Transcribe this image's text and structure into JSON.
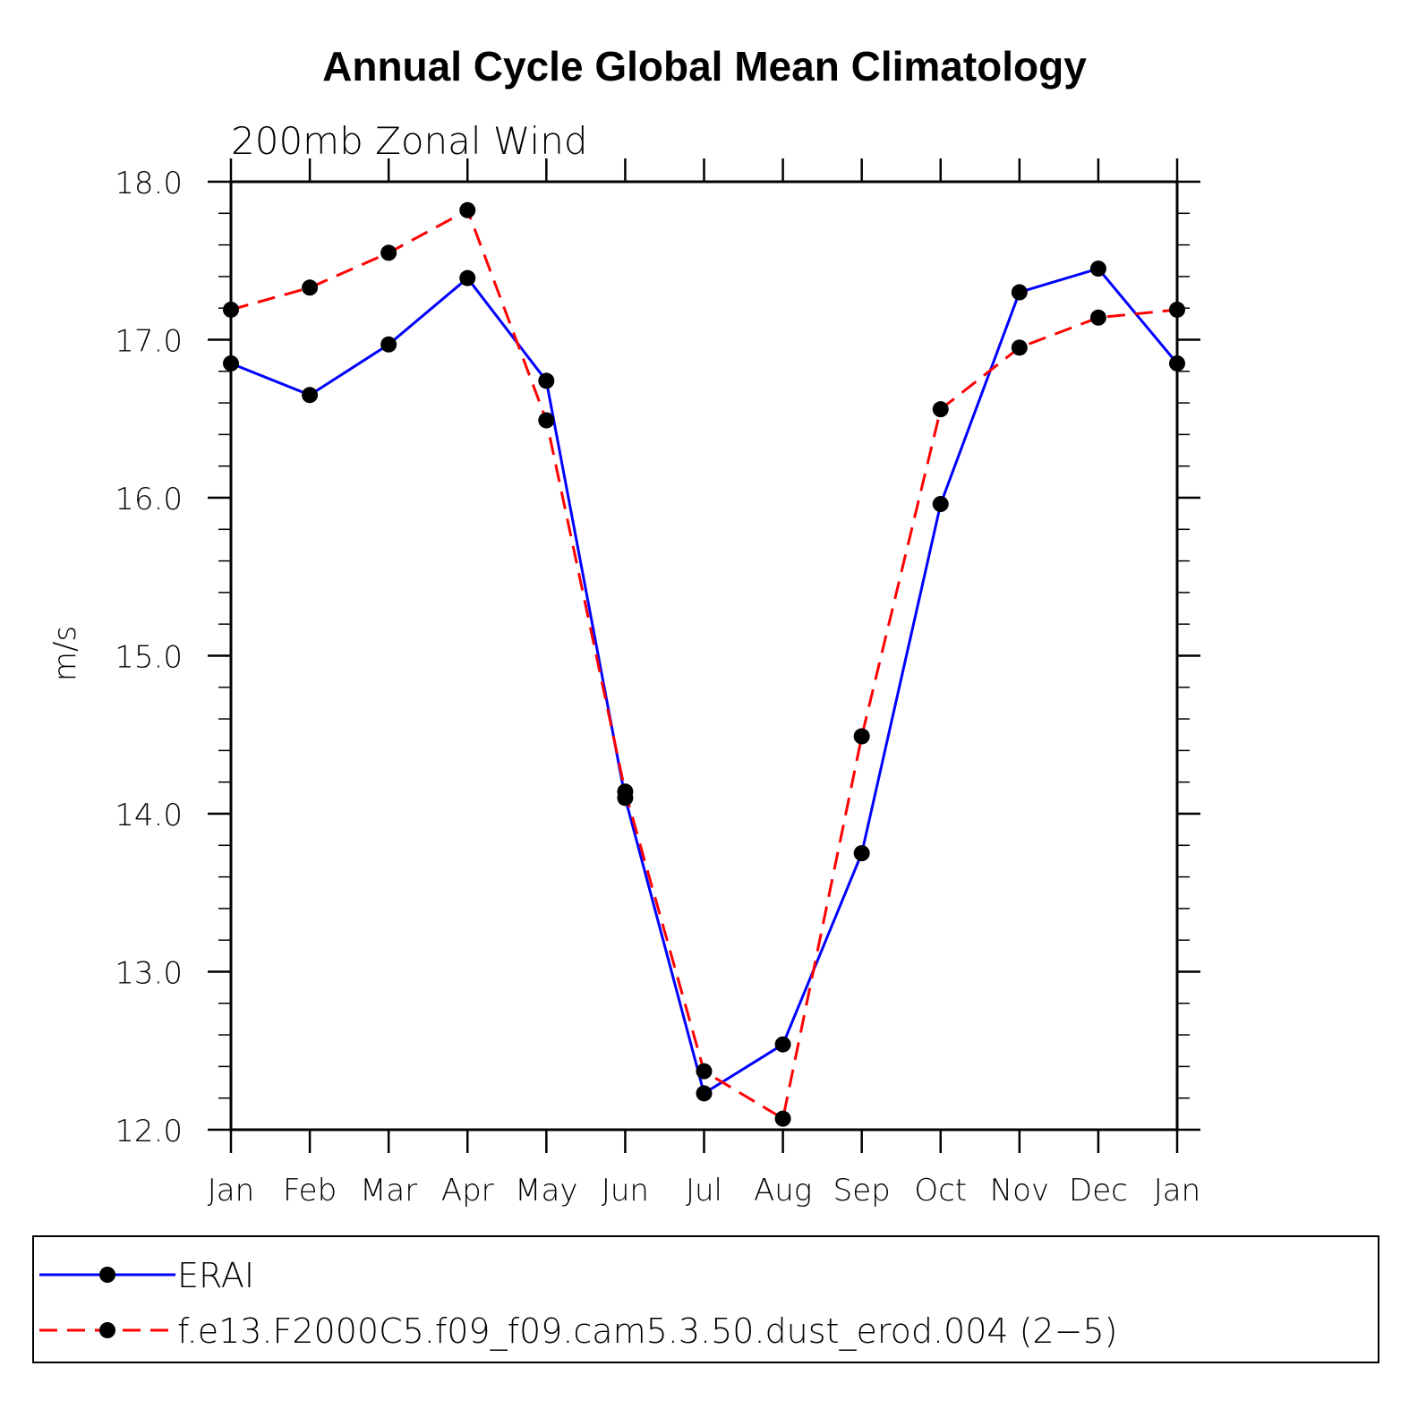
{
  "chart_data": {
    "type": "line",
    "title": "Annual Cycle Global Mean Climatology",
    "subtitle": "200mb Zonal Wind",
    "xlabel": "",
    "ylabel": "m/s",
    "ylim": [
      12.0,
      18.0
    ],
    "yticks": [
      "12.0",
      "13.0",
      "14.0",
      "15.0",
      "16.0",
      "17.0",
      "18.0"
    ],
    "categories": [
      "Jan",
      "Feb",
      "Mar",
      "Apr",
      "May",
      "Jun",
      "Jul",
      "Aug",
      "Sep",
      "Oct",
      "Nov",
      "Dec",
      "Jan"
    ],
    "series": [
      {
        "name": "ERAI",
        "color": "#0000ff",
        "dash": "solid",
        "values": [
          16.85,
          16.65,
          16.97,
          17.39,
          16.74,
          14.1,
          12.23,
          12.54,
          13.75,
          15.96,
          17.3,
          17.45,
          16.85
        ]
      },
      {
        "name": "f.e13.F2000C5.f09_f09.cam5.3.50.dust_erod.004 (2−5)",
        "color": "#ff0000",
        "dash": "dashed",
        "values": [
          17.19,
          17.33,
          17.55,
          17.82,
          16.49,
          14.14,
          12.37,
          12.07,
          14.49,
          16.56,
          16.95,
          17.14,
          17.19
        ]
      }
    ],
    "legend_position": "bottom"
  }
}
